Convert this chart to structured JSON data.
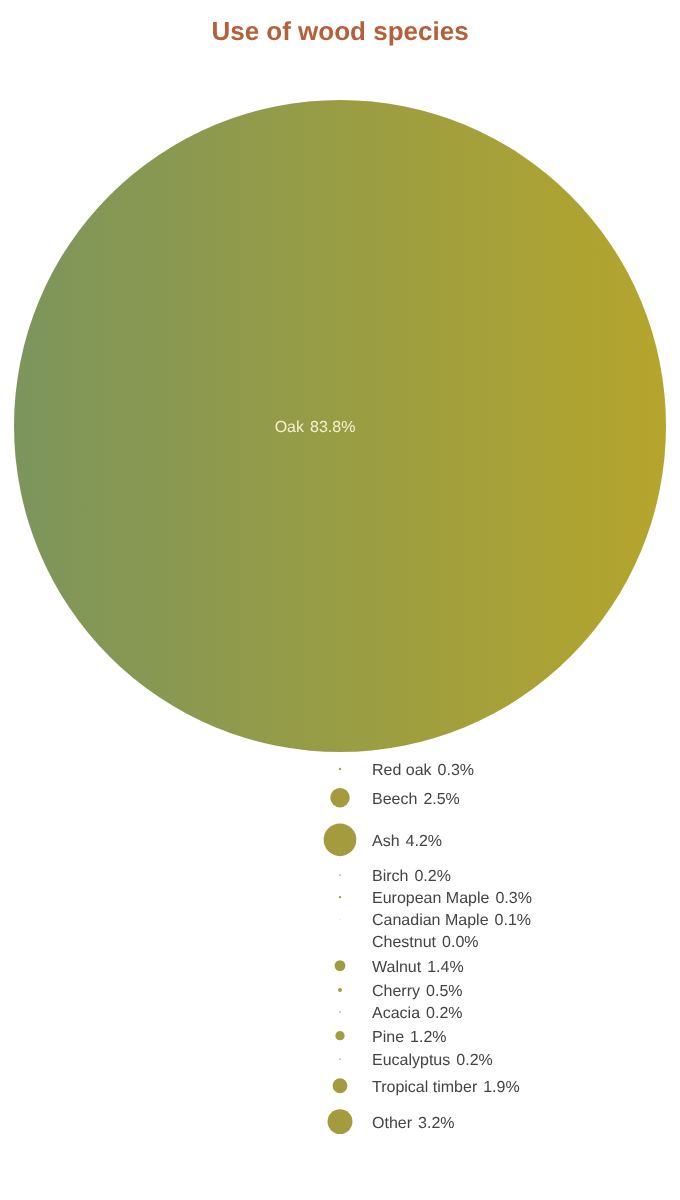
{
  "chart_data": {
    "type": "other",
    "title": "Use of wood species",
    "categories": [
      "Oak",
      "Red oak",
      "Beech",
      "Ash",
      "Birch",
      "European Maple",
      "Canadian Maple",
      "Chestnut",
      "Walnut",
      "Cherry",
      "Acacia",
      "Pine",
      "Eucalyptus",
      "Tropical timber",
      "Other"
    ],
    "values": [
      83.8,
      0.3,
      2.5,
      4.2,
      0.2,
      0.3,
      0.1,
      0.0,
      1.4,
      0.5,
      0.2,
      1.2,
      0.2,
      1.9,
      3.2
    ],
    "value_labels": [
      "83.8%",
      "0.3%",
      "2.5%",
      "4.2%",
      "0.2%",
      "0.3%",
      "0.1%",
      "0.0%",
      "1.4%",
      "0.5%",
      "0.2%",
      "1.2%",
      "0.2%",
      "1.9%",
      "3.2%"
    ],
    "colors": [
      "#98a048",
      "#a39b3e",
      "#a39b3e",
      "#a39b3e",
      "#a39b3e",
      "#a39b3e",
      "#a39b3e",
      "#a39b3e",
      "#a39b3e",
      "#a39b3e",
      "#a39b3e",
      "#a39b3e",
      "#a39b3e",
      "#a39b3e",
      "#a39b3e"
    ]
  }
}
